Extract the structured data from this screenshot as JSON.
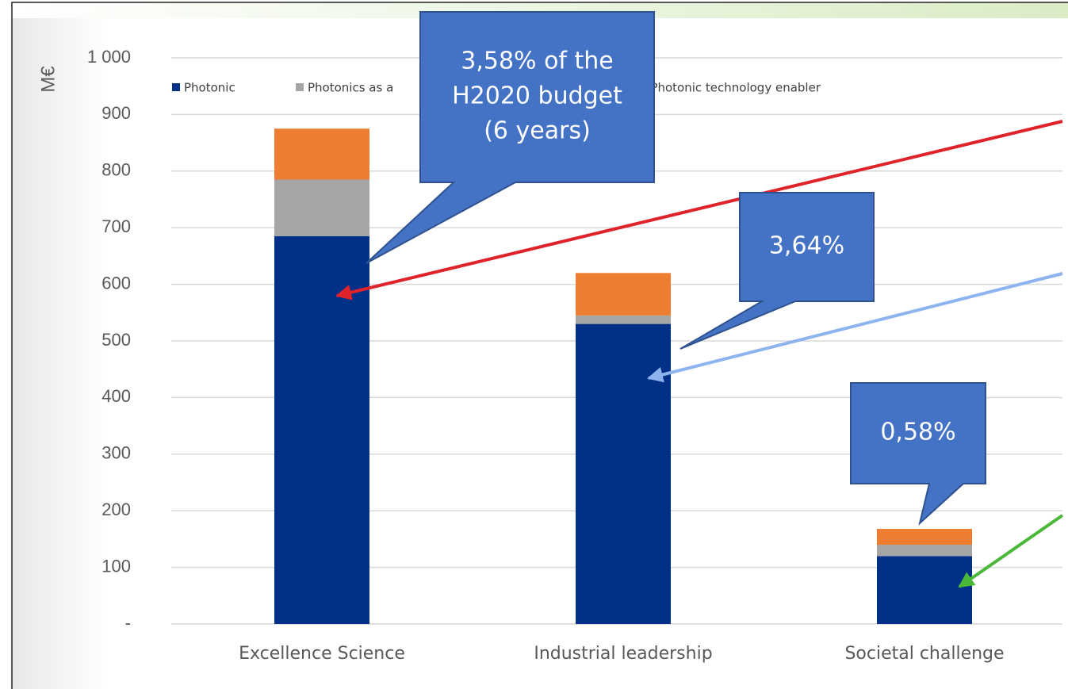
{
  "chart_data": {
    "type": "stacked_bar",
    "y_label": "M€",
    "categories": [
      "Excellence Science",
      "Industrial leadership",
      "Societal challenge"
    ],
    "series": [
      {
        "name": "Photonic",
        "color": "#003087",
        "values": [
          685,
          530,
          120
        ]
      },
      {
        "name": "Photonics as a",
        "color": "#a5a5a5",
        "values": [
          100,
          15,
          20
        ]
      },
      {
        "name": "Photonic technology enabler",
        "color": "#ed7d31",
        "values": [
          90,
          75,
          28
        ]
      }
    ],
    "ylim": [
      0,
      1000
    ],
    "yticks": [
      {
        "value": 0,
        "label": "-"
      },
      100,
      200,
      300,
      400,
      500,
      600,
      700,
      800,
      900,
      {
        "value": 1000,
        "label": "1 000"
      }
    ],
    "grid": true,
    "annotations": [
      {
        "lines": [
          "3,58% of the",
          "H2020 budget",
          "(6 years)"
        ]
      },
      {
        "lines": [
          "3,64%"
        ]
      },
      {
        "lines": [
          "0,58%"
        ]
      }
    ]
  }
}
